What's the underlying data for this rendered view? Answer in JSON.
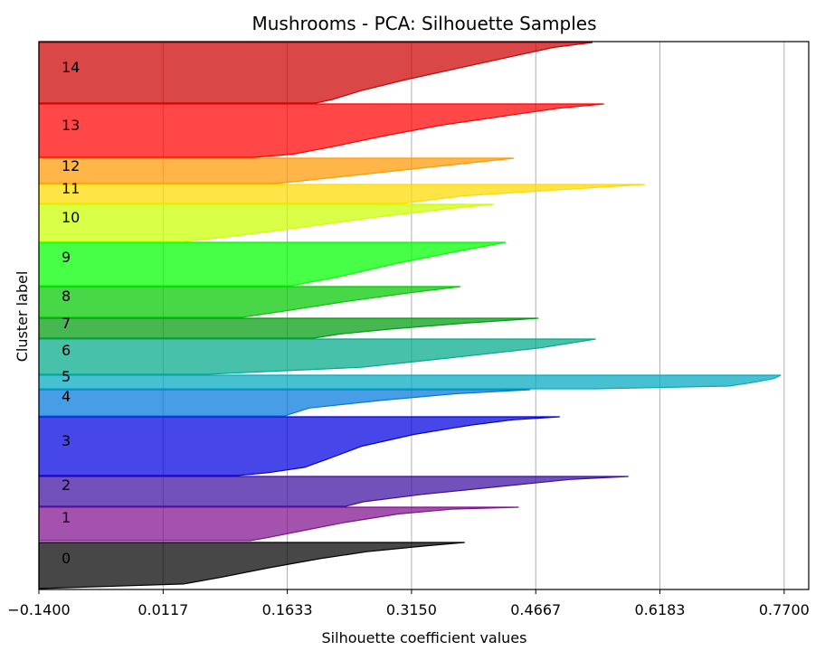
{
  "chart_data": {
    "type": "silhouette",
    "title": "Mushrooms - PCA: Silhouette Samples",
    "xlabel": "Silhouette coefficient values",
    "ylabel": "Cluster label",
    "xlim": [
      -0.14,
      0.8
    ],
    "x_ticks": [
      -0.14,
      0.0117,
      0.1633,
      0.315,
      0.4667,
      0.6183,
      0.77
    ],
    "x_tick_labels": [
      "−0.1400",
      "0.0117",
      "0.1633",
      "0.3150",
      "0.4667",
      "0.6183",
      "0.7700"
    ],
    "grid": "vertical",
    "clusters": [
      {
        "label": "0",
        "color": "#000000",
        "max": 0.38,
        "min": -0.14,
        "profile": [
          [
            0,
            1
          ],
          [
            0.08,
            0.9
          ],
          [
            0.2,
            0.77
          ],
          [
            0.35,
            0.66
          ],
          [
            0.55,
            0.54
          ],
          [
            0.75,
            0.43
          ],
          [
            0.9,
            0.34
          ],
          [
            1,
            0
          ]
        ]
      },
      {
        "label": "1",
        "color": "#7f0f8e",
        "max": 0.446,
        "min": -0.14,
        "profile": [
          [
            0,
            1
          ],
          [
            0.06,
            0.86
          ],
          [
            0.2,
            0.75
          ],
          [
            0.45,
            0.64
          ],
          [
            0.7,
            0.55
          ],
          [
            0.9,
            0.48
          ],
          [
            1,
            0.44
          ]
        ]
      },
      {
        "label": "2",
        "color": "#3b0fa0",
        "max": 0.58,
        "min": -0.14,
        "profile": [
          [
            0,
            1
          ],
          [
            0.1,
            0.9
          ],
          [
            0.3,
            0.8
          ],
          [
            0.6,
            0.65
          ],
          [
            0.85,
            0.55
          ],
          [
            1,
            0.52
          ]
        ]
      },
      {
        "label": "3",
        "color": "#0000e0",
        "max": 0.496,
        "min": -0.14,
        "profile": [
          [
            0,
            1
          ],
          [
            0.05,
            0.91
          ],
          [
            0.14,
            0.83
          ],
          [
            0.3,
            0.72
          ],
          [
            0.5,
            0.62
          ],
          [
            0.7,
            0.56
          ],
          [
            0.86,
            0.51
          ],
          [
            0.95,
            0.44
          ],
          [
            1,
            0.38
          ]
        ]
      },
      {
        "label": "4",
        "color": "#0079dd",
        "max": 0.46,
        "min": -0.14,
        "profile": [
          [
            0,
            1
          ],
          [
            0.15,
            0.85
          ],
          [
            0.4,
            0.7
          ],
          [
            0.7,
            0.55
          ],
          [
            1,
            0.5
          ]
        ]
      },
      {
        "label": "5",
        "color": "#00a9c0",
        "max": 0.766,
        "min": -0.14,
        "profile": [
          [
            0,
            1
          ],
          [
            0.25,
            0.99
          ],
          [
            0.55,
            0.96
          ],
          [
            0.8,
            0.93
          ],
          [
            1,
            0.75
          ]
        ]
      },
      {
        "label": "6",
        "color": "#00a989",
        "max": 0.54,
        "min": -0.14,
        "profile": [
          [
            0,
            1
          ],
          [
            0.25,
            0.9
          ],
          [
            0.55,
            0.73
          ],
          [
            0.8,
            0.58
          ],
          [
            1,
            0.3
          ]
        ]
      },
      {
        "label": "7",
        "color": "#009b0f",
        "max": 0.47,
        "min": -0.14,
        "profile": [
          [
            0,
            1
          ],
          [
            0.25,
            0.85
          ],
          [
            0.55,
            0.7
          ],
          [
            0.8,
            0.6
          ],
          [
            1,
            0.55
          ]
        ]
      },
      {
        "label": "8",
        "color": "#00c700",
        "max": 0.375,
        "min": -0.14,
        "profile": [
          [
            0,
            1
          ],
          [
            0.2,
            0.88
          ],
          [
            0.5,
            0.72
          ],
          [
            0.8,
            0.58
          ],
          [
            1,
            0.48
          ]
        ]
      },
      {
        "label": "9",
        "color": "#00ff00",
        "max": 0.43,
        "min": -0.14,
        "profile": [
          [
            0,
            1
          ],
          [
            0.2,
            0.9
          ],
          [
            0.5,
            0.76
          ],
          [
            0.8,
            0.64
          ],
          [
            1,
            0.54
          ]
        ]
      },
      {
        "label": "10",
        "color": "#ccff00",
        "max": 0.415,
        "min": -0.14,
        "profile": [
          [
            0,
            1
          ],
          [
            0.12,
            0.9
          ],
          [
            0.35,
            0.74
          ],
          [
            0.65,
            0.56
          ],
          [
            0.9,
            0.4
          ],
          [
            1,
            0.32
          ]
        ]
      },
      {
        "label": "11",
        "color": "#ffd900",
        "max": 0.6,
        "min": -0.14,
        "profile": [
          [
            0,
            1
          ],
          [
            0.3,
            0.85
          ],
          [
            0.6,
            0.7
          ],
          [
            1,
            0.6
          ]
        ]
      },
      {
        "label": "12",
        "color": "#ff9900",
        "max": 0.44,
        "min": -0.14,
        "profile": [
          [
            0,
            1
          ],
          [
            0.3,
            0.85
          ],
          [
            0.7,
            0.65
          ],
          [
            1,
            0.5
          ]
        ]
      },
      {
        "label": "13",
        "color": "#ff0000",
        "max": 0.55,
        "min": -0.14,
        "profile": [
          [
            0,
            1
          ],
          [
            0.08,
            0.92
          ],
          [
            0.2,
            0.84
          ],
          [
            0.4,
            0.71
          ],
          [
            0.6,
            0.61
          ],
          [
            0.8,
            0.52
          ],
          [
            0.94,
            0.45
          ],
          [
            1,
            0.38
          ]
        ]
      },
      {
        "label": "14",
        "color": "#cc0000",
        "max": 0.536,
        "min": -0.14,
        "profile": [
          [
            0,
            1
          ],
          [
            0.08,
            0.93
          ],
          [
            0.22,
            0.86
          ],
          [
            0.42,
            0.76
          ],
          [
            0.62,
            0.66
          ],
          [
            0.8,
            0.58
          ],
          [
            0.94,
            0.53
          ],
          [
            1,
            0.5
          ]
        ]
      }
    ],
    "avg_line": null
  }
}
